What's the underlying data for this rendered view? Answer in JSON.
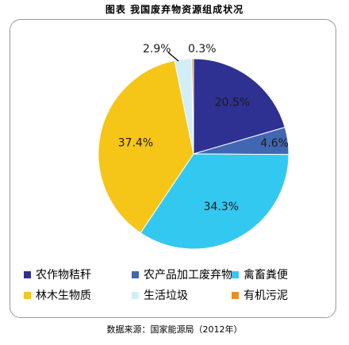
{
  "figure": {
    "title": "图表   我国废弃物资源组成状况",
    "source": "数据来源：国家能源局（2012年）"
  },
  "colors": {
    "frame": "#9a9a9a"
  },
  "chart_data": {
    "type": "pie",
    "title": "",
    "slices": [
      {
        "label": "农作物秸秆",
        "value": 20.5,
        "display": "20.5%",
        "color": "#2e3192"
      },
      {
        "label": "农产品加工废弃物",
        "value": 4.6,
        "display": "4.6%",
        "color": "#4267b2"
      },
      {
        "label": "禽畜粪便",
        "value": 34.3,
        "display": "34.3%",
        "color": "#33c8f0"
      },
      {
        "label": "林木生物质",
        "value": 37.4,
        "display": "37.4%",
        "color": "#f5c518"
      },
      {
        "label": "生活垃圾",
        "value": 2.9,
        "display": "2.9%",
        "color": "#d4eef8"
      },
      {
        "label": "有机污泥",
        "value": 0.3,
        "display": "0.3%",
        "color": "#f28c1e"
      }
    ],
    "legend_position": "bottom"
  }
}
